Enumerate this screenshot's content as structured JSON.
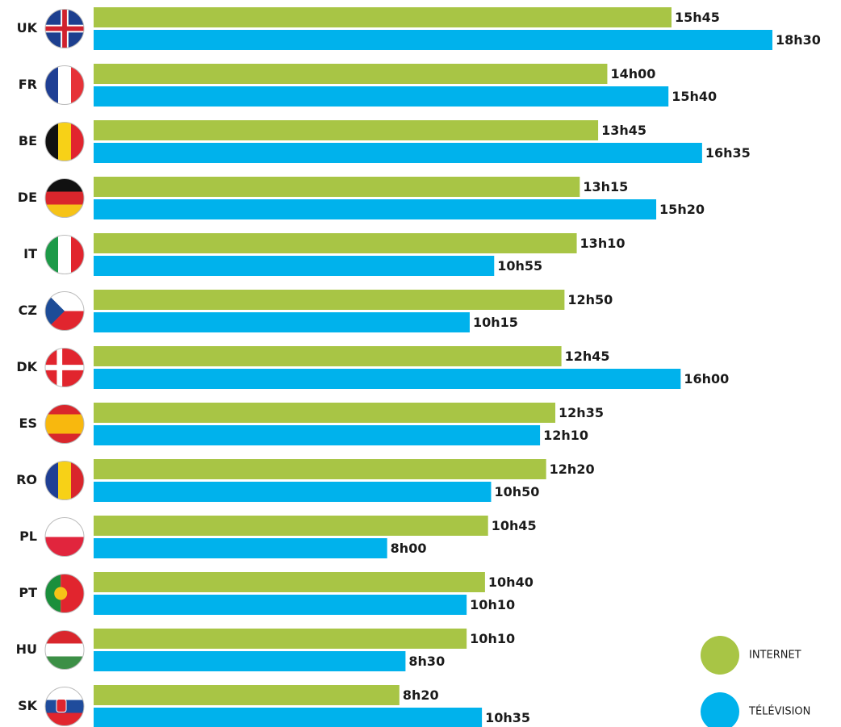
{
  "chart_data": {
    "type": "bar",
    "orientation": "horizontal",
    "categories": [
      "UK",
      "FR",
      "BE",
      "DE",
      "IT",
      "CZ",
      "DK",
      "ES",
      "RO",
      "PL",
      "PT",
      "HU",
      "SK"
    ],
    "series": [
      {
        "name": "INTERNET",
        "color": "#a8c545",
        "values": [
          15.75,
          14,
          13.75,
          13.25,
          13.1667,
          12.8333,
          12.75,
          12.5833,
          12.3333,
          10.75,
          10.6667,
          10.1667,
          8.3333
        ],
        "value_labels": [
          "15h45",
          "14h00",
          "13h45",
          "13h15",
          "13h10",
          "12h50",
          "12h45",
          "12h35",
          "12h20",
          "10h45",
          "10h40",
          "10h10",
          "8h20"
        ]
      },
      {
        "name": "TÉLÉVISION",
        "color": "#00b2ec",
        "values": [
          18.5,
          15.6667,
          16.5833,
          15.3333,
          10.9167,
          10.25,
          16,
          12.1667,
          10.8333,
          8,
          10.1667,
          8.5,
          10.5833
        ],
        "value_labels": [
          "18h30",
          "15h40",
          "16h35",
          "15h20",
          "10h55",
          "10h15",
          "16h00",
          "12h10",
          "10h50",
          "8h00",
          "10h10",
          "8h30",
          "10h35"
        ]
      }
    ]
  }
}
